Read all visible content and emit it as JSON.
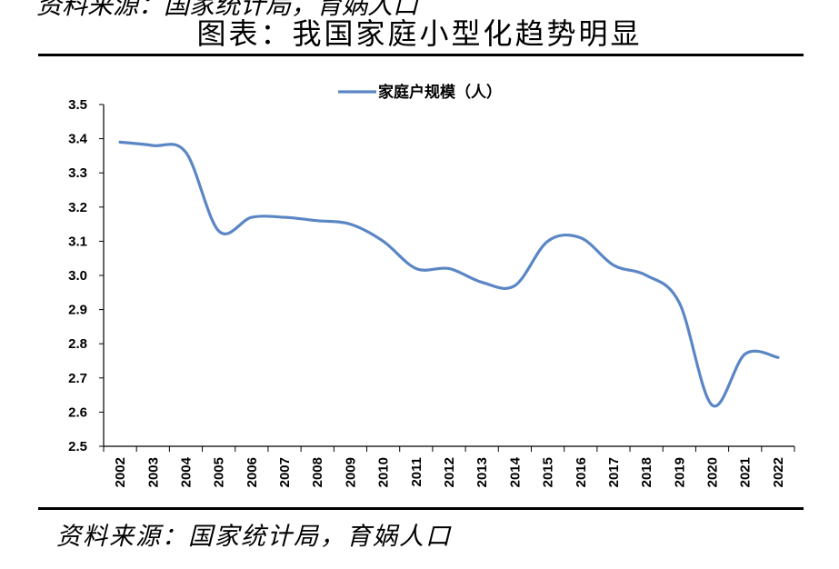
{
  "header": {
    "cut_text": "资料来源：国家统计局，育娲人口",
    "title": "图表：我国家庭小型化趋势明显"
  },
  "footer": {
    "source": "资料来源：国家统计局，育娲人口"
  },
  "chart_data": {
    "type": "line",
    "title": "",
    "xlabel": "",
    "ylabel": "",
    "ylim": [
      2.5,
      3.5
    ],
    "y_ticks": [
      "3.5",
      "3.4",
      "3.3",
      "3.2",
      "3.1",
      "3.0",
      "2.9",
      "2.8",
      "2.7",
      "2.6",
      "2.5"
    ],
    "x": [
      "2002",
      "2003",
      "2004",
      "2005",
      "2006",
      "2007",
      "2008",
      "2009",
      "2010",
      "2011",
      "2012",
      "2013",
      "2014",
      "2015",
      "2016",
      "2017",
      "2018",
      "2019",
      "2020",
      "2021",
      "2022"
    ],
    "series": [
      {
        "name": "家庭户规模（人）",
        "values": [
          3.39,
          3.38,
          3.36,
          3.13,
          3.17,
          3.17,
          3.16,
          3.15,
          3.1,
          3.02,
          3.02,
          2.98,
          2.97,
          3.1,
          3.11,
          3.03,
          3.0,
          2.92,
          2.62,
          2.77,
          2.76
        ]
      }
    ],
    "grid": false,
    "legend": "top-center",
    "colors": {
      "line": "#5b86c5",
      "axis": "#000000"
    }
  }
}
